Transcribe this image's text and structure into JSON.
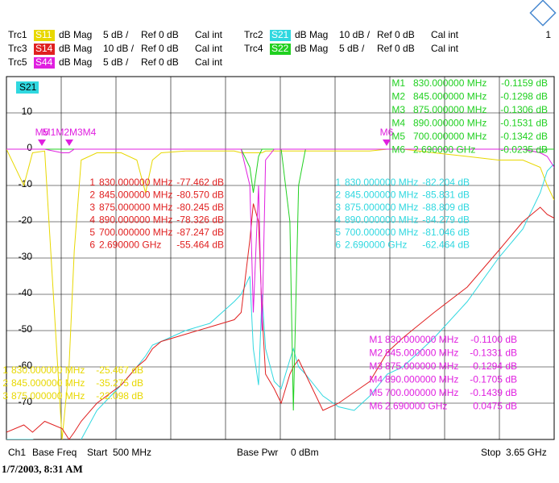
{
  "chart_data": {
    "type": "line",
    "page_number": "1",
    "active_trace": "S21",
    "xlim": [
      500,
      3650
    ],
    "ylim": [
      -80,
      20
    ],
    "yticks": [
      10,
      0,
      -10,
      -20,
      -30,
      -40,
      -50,
      -60,
      -70
    ],
    "grid": true,
    "x": [
      500,
      600,
      650,
      720,
      820,
      860,
      890,
      930,
      1020,
      1160,
      1250,
      1300,
      1340,
      1390,
      1530,
      1670,
      1810,
      1850,
      1900,
      1920,
      1950,
      1970,
      1990,
      2040,
      2080,
      2130,
      2150,
      2180,
      2220,
      2320,
      2410,
      2500,
      2590,
      2690,
      2780,
      2960,
      3150,
      3330,
      3470,
      3570,
      3610,
      3650
    ],
    "series": [
      {
        "name": "S11",
        "trace": "Trc1",
        "format": "dB Mag",
        "scale": "5 dB /",
        "ref": "Ref 0 dB",
        "cal": "Cal int",
        "color": "#e8d800",
        "values": [
          0,
          -10,
          -1,
          -0.5,
          -80,
          -60,
          -28,
          -3,
          -1,
          -1,
          -3,
          -12,
          -3,
          -1,
          -0.5,
          -0.5,
          -0.5,
          -1,
          -1,
          -1,
          -1,
          -1,
          -0.5,
          -0.5,
          -0.5,
          -0.5,
          -0.5,
          -0.5,
          -0.5,
          -0.5,
          -0.5,
          -0.5,
          -0.5,
          0,
          0,
          -1,
          -2,
          -3,
          -3,
          -5,
          -10,
          -14
        ]
      },
      {
        "name": "S21",
        "trace": "Trc2",
        "format": "dB Mag",
        "scale": "10 dB /",
        "ref": "Ref 0 dB",
        "cal": "Cal int",
        "color": "#30d8e0",
        "values": [
          -80,
          -80,
          -80,
          -81,
          -82,
          -86,
          -84,
          -80,
          -72,
          -65,
          -60,
          -57,
          -54,
          -53,
          -50,
          -48,
          -42,
          -40,
          -35,
          -55,
          -65,
          -40,
          -55,
          -64,
          -66,
          -58,
          -55,
          -60,
          -62,
          -68,
          -71,
          -72,
          -68,
          -62,
          -60,
          -52,
          -42,
          -30,
          -22,
          -12,
          -6,
          -4
        ]
      },
      {
        "name": "S14",
        "trace": "Trc3",
        "format": "dB Mag",
        "scale": "10 dB /",
        "ref": "Ref 0 dB",
        "cal": "Cal int",
        "color": "#e02020",
        "values": [
          -78,
          -76,
          -78,
          -75,
          -77,
          -80,
          -78,
          -75,
          -70,
          -65,
          -60,
          -58,
          -55,
          -53,
          -51,
          -49,
          -47,
          -45,
          -25,
          -15,
          -20,
          -45,
          -62,
          -66,
          -70,
          -62,
          -60,
          -58,
          -62,
          -72,
          -70,
          -67,
          -64,
          -56,
          -52,
          -45,
          -38,
          -28,
          -20,
          -16,
          -18,
          -19
        ]
      },
      {
        "name": "S22",
        "trace": "Trc4",
        "format": "dB Mag",
        "scale": "5 dB /",
        "ref": "Ref 0 dB",
        "cal": "Cal int",
        "color": "#20d020",
        "values": [
          0,
          0,
          0,
          0,
          0,
          0,
          0,
          0,
          0,
          0,
          0,
          0,
          0,
          0,
          0,
          0,
          0,
          0,
          -5,
          -12,
          -2,
          0,
          0,
          0,
          0,
          -20,
          -72,
          -10,
          0,
          0,
          0,
          0,
          0,
          0,
          0,
          0,
          0,
          0,
          0,
          -1,
          0,
          0
        ]
      },
      {
        "name": "S44",
        "trace": "Trc5",
        "format": "dB Mag",
        "scale": "5 dB /",
        "ref": "Ref 0 dB",
        "cal": "Cal int",
        "color": "#e020e0",
        "values": [
          0,
          0,
          0,
          0,
          -1,
          -1,
          0,
          0,
          0,
          0,
          0,
          0,
          0,
          0,
          0,
          0,
          0,
          0,
          -10,
          -45,
          -10,
          -50,
          -3,
          0,
          0,
          0,
          0,
          0,
          0,
          0,
          0,
          0,
          0,
          0,
          0,
          0,
          0,
          0,
          0,
          -1,
          -2,
          -5
        ]
      }
    ],
    "marker_labels": [
      "M5",
      "M1M2M3M4",
      "M6"
    ],
    "marker_tables": [
      {
        "color": "#20d020",
        "rows": [
          [
            "M1",
            "830.000000 MHz",
            "-0.1159 dB"
          ],
          [
            "M2",
            "845.000000 MHz",
            "-0.1298 dB"
          ],
          [
            "M3",
            "875.000000 MHz",
            "-0.1306 dB"
          ],
          [
            "M4",
            "890.000000 MHz",
            "-0.1531 dB"
          ],
          [
            "M5",
            "700.000000 MHz",
            "-0.1342 dB"
          ],
          [
            "M6",
            "2.690000 GHz",
            "-0.0235 dB"
          ]
        ]
      },
      {
        "color": "#e02020",
        "rows": [
          [
            "1",
            "830.000000 MHz",
            "-77.462 dB"
          ],
          [
            "2",
            "845.000000 MHz",
            "-80.570 dB"
          ],
          [
            "3",
            "875.000000 MHz",
            "-80.245 dB"
          ],
          [
            "4",
            "890.000000 MHz",
            "-78.326 dB"
          ],
          [
            "5",
            "700.000000 MHz",
            "-87.247 dB"
          ],
          [
            "6",
            "2.690000 GHz",
            "-55.464 dB"
          ]
        ]
      },
      {
        "color": "#30d8e0",
        "rows": [
          [
            "1",
            "830.000000 MHz",
            "-82.204 dB"
          ],
          [
            "2",
            "845.000000 MHz",
            "-85.831 dB"
          ],
          [
            "3",
            "875.000000 MHz",
            "-88.809 dB"
          ],
          [
            "4",
            "890.000000 MHz",
            "-84.279 dB"
          ],
          [
            "5",
            "700.000000 MHz",
            "-81.046 dB"
          ],
          [
            "6",
            "2.690000 GHz",
            "-62.464 dB"
          ]
        ]
      },
      {
        "color": "#e020e0",
        "rows": [
          [
            "M1",
            "830.000000 MHz",
            "-0.1100 dB"
          ],
          [
            "M2",
            "845.000000 MHz",
            "-0.1331 dB"
          ],
          [
            "M3",
            "875.000000 MHz",
            "-0.1294 dB"
          ],
          [
            "M4",
            "890.000000 MHz",
            "-0.1705 dB"
          ],
          [
            "M5",
            "700.000000 MHz",
            "-0.1439 dB"
          ],
          [
            "M6",
            "2.690000 GHz",
            "0.0475 dB"
          ]
        ]
      },
      {
        "color": "#e8d800",
        "rows": [
          [
            "1",
            "830.000000 MHz",
            "-25.467 dB"
          ],
          [
            "2",
            "845.000000 MHz",
            "-35.275 dB"
          ],
          [
            "3",
            "875.000000 MHz",
            "-22.098 dB"
          ]
        ]
      }
    ],
    "status": {
      "channel": "Ch1",
      "sweep": "Base Freq",
      "start_label": "Start",
      "start": "500 MHz",
      "power_label": "Base Pwr",
      "power": "0 dBm",
      "stop_label": "Stop",
      "stop": "3.65 GHz"
    },
    "timestamp": "1/7/2003, 8:31 AM"
  }
}
